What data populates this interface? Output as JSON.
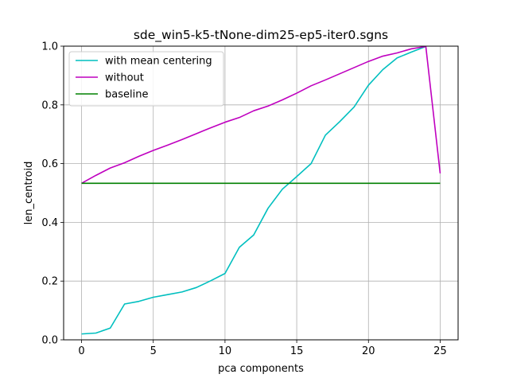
{
  "chart_data": {
    "type": "line",
    "title": "sde_win5-k5-tNone-dim25-ep5-iter0.sgns",
    "xlabel": "pca components",
    "ylabel": "len_centroid",
    "xlim": [
      -1.25,
      26.25
    ],
    "ylim": [
      0,
      1.0
    ],
    "xticks": [
      0,
      5,
      10,
      15,
      20,
      25
    ],
    "yticks": [
      0.0,
      0.2,
      0.4,
      0.6,
      0.8,
      1.0
    ],
    "xtick_labels": [
      "0",
      "5",
      "10",
      "15",
      "20",
      "25"
    ],
    "ytick_labels": [
      "0.0",
      "0.2",
      "0.4",
      "0.6",
      "0.8",
      "1.0"
    ],
    "grid": true,
    "legend_position": "top-left",
    "series": [
      {
        "name": "with mean centering",
        "color": "#00bfbf",
        "x": [
          0,
          1,
          2,
          3,
          4,
          5,
          6,
          7,
          8,
          9,
          10,
          11,
          12,
          13,
          14,
          15,
          16,
          17,
          18,
          19,
          20,
          21,
          22,
          23,
          24
        ],
        "y": [
          0.02,
          0.023,
          0.04,
          0.122,
          0.131,
          0.145,
          0.154,
          0.163,
          0.178,
          0.201,
          0.226,
          0.315,
          0.357,
          0.448,
          0.513,
          0.556,
          0.6,
          0.697,
          0.743,
          0.793,
          0.867,
          0.92,
          0.96,
          0.98,
          0.999
        ]
      },
      {
        "name": "without",
        "color": "#bf00bf",
        "x": [
          0,
          1,
          2,
          3,
          4,
          5,
          6,
          7,
          8,
          9,
          10,
          11,
          12,
          13,
          14,
          15,
          16,
          17,
          18,
          19,
          20,
          21,
          22,
          23,
          24,
          25
        ],
        "y": [
          0.533,
          0.56,
          0.585,
          0.603,
          0.625,
          0.645,
          0.663,
          0.682,
          0.702,
          0.722,
          0.741,
          0.757,
          0.78,
          0.796,
          0.817,
          0.84,
          0.865,
          0.885,
          0.906,
          0.927,
          0.948,
          0.966,
          0.977,
          0.991,
          0.999,
          0.567
        ]
      },
      {
        "name": "baseline",
        "color": "#008000",
        "x": [
          0,
          25
        ],
        "y": [
          0.533,
          0.533
        ]
      }
    ]
  }
}
